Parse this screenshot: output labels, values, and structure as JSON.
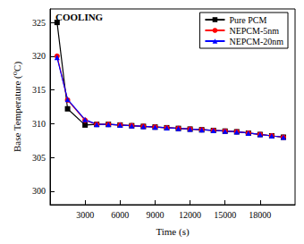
{
  "chart_data": {
    "type": "line",
    "annotation": "COOLING",
    "x_label": "Time (s)",
    "y_label": "Base Temperature (⁰C)",
    "x": [
      600,
      1500,
      3000,
      4000,
      5000,
      6000,
      7000,
      8000,
      9000,
      10000,
      11000,
      12000,
      13000,
      14000,
      15000,
      16000,
      17000,
      18000,
      19000,
      20000
    ],
    "series": [
      {
        "name": "Pure PCM",
        "color": "#000000",
        "marker": "square",
        "values": [
          325,
          312.2,
          309.8,
          309.9,
          309.9,
          309.8,
          309.7,
          309.6,
          309.5,
          309.4,
          309.3,
          309.2,
          309.1,
          309.0,
          308.9,
          308.8,
          308.6,
          308.4,
          308.2,
          308.0
        ]
      },
      {
        "name": "NEPCM-5nm",
        "color": "#ff0000",
        "marker": "circle",
        "values": [
          320,
          313.5,
          310.5,
          309.9,
          309.9,
          309.8,
          309.7,
          309.6,
          309.5,
          309.4,
          309.3,
          309.2,
          309.1,
          309.0,
          308.9,
          308.8,
          308.6,
          308.4,
          308.2,
          308.0
        ]
      },
      {
        "name": "NEPCM-20nm",
        "color": "#0000ff",
        "marker": "triangle",
        "values": [
          319.8,
          313.6,
          310.6,
          309.9,
          309.9,
          309.8,
          309.7,
          309.6,
          309.5,
          309.4,
          309.3,
          309.2,
          309.1,
          309.0,
          308.9,
          308.8,
          308.6,
          308.4,
          308.2,
          308.0
        ]
      }
    ],
    "xlim": [
      0,
      21000
    ],
    "xticks": [
      3000,
      6000,
      9000,
      12000,
      15000,
      18000
    ],
    "ylim": [
      298,
      327
    ],
    "yticks": [
      300,
      305,
      310,
      315,
      320,
      325
    ],
    "legend": "upper right",
    "grid": false
  }
}
